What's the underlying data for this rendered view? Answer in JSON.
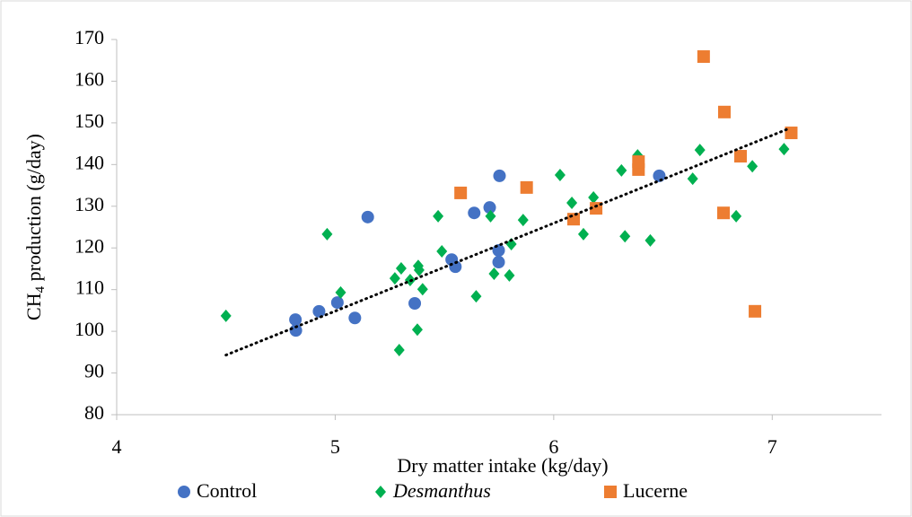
{
  "chart_data": {
    "type": "scatter",
    "x_label": "Dry matter intake (kg/day)",
    "y_label_parts": [
      "CH",
      "4",
      " production (g/day)"
    ],
    "xlim": [
      4,
      7.5
    ],
    "xticks": [
      4,
      5,
      6,
      7
    ],
    "ylim": [
      80,
      170
    ],
    "yticks": [
      80,
      90,
      100,
      110,
      120,
      130,
      140,
      150,
      160,
      170
    ],
    "series": [
      {
        "name": "Control",
        "color": "#4472c4",
        "marker": "circle",
        "x": [
          4.818,
          4.82,
          4.926,
          5.01,
          5.09,
          5.149,
          5.364,
          5.533,
          5.55,
          5.636,
          5.707,
          5.752,
          5.748,
          5.748,
          6.483
        ],
        "values": [
          102.8,
          100.2,
          104.8,
          106.9,
          103.2,
          127.4,
          106.7,
          117.2,
          115.5,
          128.4,
          129.7,
          137.3,
          119.4,
          116.6,
          137.3
        ]
      },
      {
        "name": "Desmanthus",
        "color": "#00b050",
        "marker": "diamond",
        "x": [
          4.5,
          4.963,
          5.025,
          5.273,
          5.302,
          5.293,
          5.343,
          5.38,
          5.384,
          5.376,
          5.4,
          5.471,
          5.488,
          5.645,
          5.711,
          5.727,
          5.797,
          5.806,
          5.86,
          6.029,
          6.083,
          6.136,
          6.182,
          6.31,
          6.326,
          6.384,
          6.442,
          6.636,
          6.669,
          6.835,
          6.909,
          7.054
        ],
        "values": [
          103.7,
          123.3,
          109.3,
          112.7,
          115.1,
          95.5,
          112.3,
          115.7,
          114.7,
          100.4,
          110.1,
          127.6,
          119.2,
          108.4,
          127.6,
          113.8,
          113.4,
          120.9,
          126.7,
          137.5,
          130.8,
          123.3,
          132.1,
          138.6,
          122.8,
          142.2,
          121.8,
          136.6,
          143.5,
          127.6,
          139.6,
          143.7
        ]
      },
      {
        "name": "Lucerne",
        "color": "#ed7d31",
        "marker": "square",
        "x": [
          5.574,
          5.876,
          6.091,
          6.194,
          6.388,
          6.388,
          6.686,
          6.781,
          6.777,
          6.855,
          6.921,
          7.087
        ],
        "values": [
          133.2,
          134.5,
          126.9,
          129.5,
          138.8,
          140.7,
          165.9,
          152.6,
          128.4,
          142.0,
          104.8,
          147.6
        ]
      }
    ],
    "trendline": {
      "x": [
        4.5,
        7.07
      ],
      "values": [
        94.3,
        148.5
      ],
      "color": "#000000"
    }
  }
}
